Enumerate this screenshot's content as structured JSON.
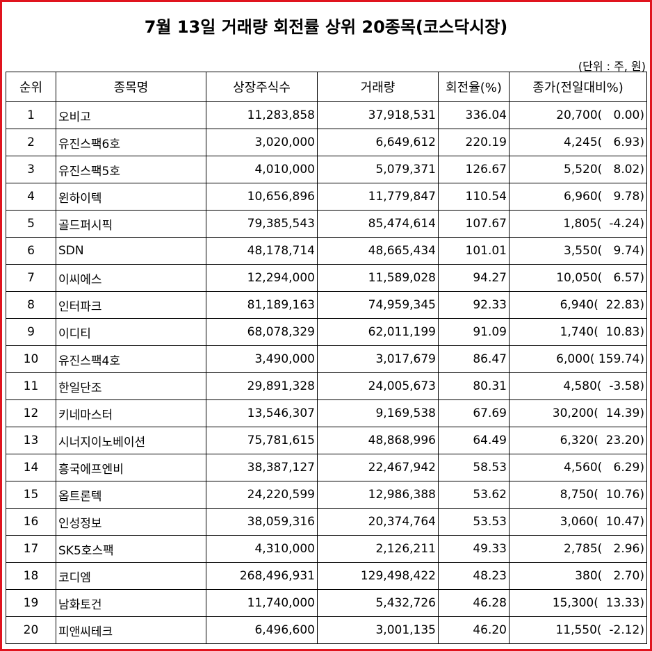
{
  "title": "7월 13일 거래량 회전률 상위 20종목(코스닥시장)",
  "unit": "(단위 : 주, 원)",
  "table": {
    "headers": [
      "순위",
      "종목명",
      "상장주식수",
      "거래량",
      "회전율(%)",
      "종가(전일대비%)"
    ],
    "rows": [
      [
        "1",
        "오비고",
        "11,283,858",
        "37,918,531",
        "336.04",
        "20,700(   0.00)"
      ],
      [
        "2",
        "유진스팩6호",
        "3,020,000",
        "6,649,612",
        "220.19",
        "4,245(   6.93)"
      ],
      [
        "3",
        "유진스팩5호",
        "4,010,000",
        "5,079,371",
        "126.67",
        "5,520(   8.02)"
      ],
      [
        "4",
        "윈하이텍",
        "10,656,896",
        "11,779,847",
        "110.54",
        "6,960(   9.78)"
      ],
      [
        "5",
        "골드퍼시픽",
        "79,385,543",
        "85,474,614",
        "107.67",
        "1,805(  -4.24)"
      ],
      [
        "6",
        "SDN",
        "48,178,714",
        "48,665,434",
        "101.01",
        "3,550(   9.74)"
      ],
      [
        "7",
        "이씨에스",
        "12,294,000",
        "11,589,028",
        "94.27",
        "10,050(   6.57)"
      ],
      [
        "8",
        "인터파크",
        "81,189,163",
        "74,959,345",
        "92.33",
        "6,940(  22.83)"
      ],
      [
        "9",
        "이디티",
        "68,078,329",
        "62,011,199",
        "91.09",
        "1,740(  10.83)"
      ],
      [
        "10",
        "유진스팩4호",
        "3,490,000",
        "3,017,679",
        "86.47",
        "6,000( 159.74)"
      ],
      [
        "11",
        "한일단조",
        "29,891,328",
        "24,005,673",
        "80.31",
        "4,580(  -3.58)"
      ],
      [
        "12",
        "키네마스터",
        "13,546,307",
        "9,169,538",
        "67.69",
        "30,200(  14.39)"
      ],
      [
        "13",
        "시너지이노베이션",
        "75,781,615",
        "48,868,996",
        "64.49",
        "6,320(  23.20)"
      ],
      [
        "14",
        "흥국에프엔비",
        "38,387,127",
        "22,467,942",
        "58.53",
        "4,560(   6.29)"
      ],
      [
        "15",
        "옵트론텍",
        "24,220,599",
        "12,986,388",
        "53.62",
        "8,750(  10.76)"
      ],
      [
        "16",
        "인성정보",
        "38,059,316",
        "20,374,764",
        "53.53",
        "3,060(  10.47)"
      ],
      [
        "17",
        "SK5호스팩",
        "4,310,000",
        "2,126,211",
        "49.33",
        "2,785(   2.96)"
      ],
      [
        "18",
        "코디엠",
        "268,496,931",
        "129,498,422",
        "48.23",
        "380(   2.70)"
      ],
      [
        "19",
        "남화토건",
        "11,740,000",
        "5,432,726",
        "46.28",
        "15,300(  13.33)"
      ],
      [
        "20",
        "피앤씨테크",
        "6,496,600",
        "3,001,135",
        "46.20",
        "11,550(  -2.12)"
      ]
    ]
  }
}
